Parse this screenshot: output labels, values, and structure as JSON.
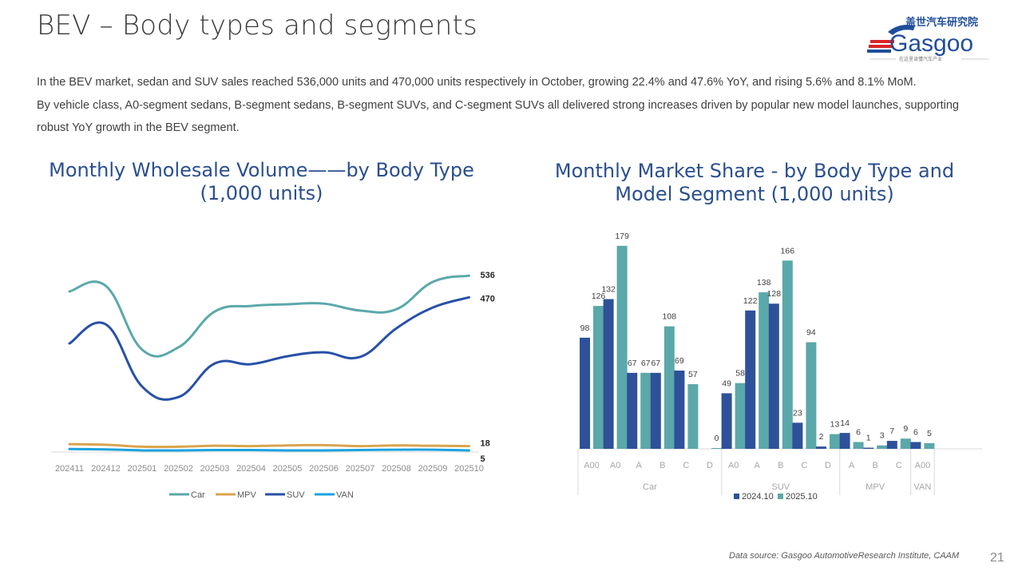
{
  "page": {
    "title": "BEV – Body types and segments",
    "number": "21",
    "source": "Data source: Gasgoo AutomotiveResearch Institute, CAAM",
    "intro": [
      "In the BEV market, sedan and SUV sales reached 536,000 units and 470,000 units respectively in October, growing 22.4% and 47.6% YoY, and rising 5.6% and 8.1% MoM.",
      "By vehicle class, A0-segment sedans, B-segment sedans, B-segment SUVs, and C-segment SUVs all delivered strong increases driven by popular new model launches, supporting robust YoY growth in the BEV segment."
    ]
  },
  "logo": {
    "brand": "Gasgoo",
    "cn_name": "盖世汽车研究院",
    "tagline": "在这里读懂汽车产业",
    "colors": {
      "blue": "#1f4e9a",
      "red": "#d9262b"
    }
  },
  "chart_data": [
    {
      "type": "line",
      "title": "Monthly Wholesale Volume——by Body Type (1,000 units)",
      "x": [
        "202411",
        "202412",
        "202501",
        "202502",
        "202503",
        "202504",
        "202505",
        "202506",
        "202507",
        "202508",
        "202509",
        "202510"
      ],
      "xlabel": "",
      "ylabel": "",
      "ylim": [
        0,
        540
      ],
      "grid": false,
      "legend": "bottom",
      "series": [
        {
          "name": "Car",
          "color": "#5ba8aa",
          "values": [
            488,
            505,
            311,
            318,
            427,
            444,
            449,
            451,
            430,
            434,
            517,
            536
          ],
          "end_label": "536"
        },
        {
          "name": "MPV",
          "color": "#d9a44e",
          "values": [
            24,
            22,
            16,
            16,
            19,
            18,
            20,
            21,
            18,
            20,
            19,
            18
          ],
          "end_label": "18"
        },
        {
          "name": "SUV",
          "color": "#2850a8",
          "values": [
            330,
            388,
            199,
            167,
            269,
            267,
            291,
            303,
            289,
            376,
            439,
            470
          ],
          "end_label": "470"
        },
        {
          "name": "VAN",
          "color": "#1aa3e0",
          "values": [
            9,
            8,
            5,
            5,
            6,
            6,
            5,
            5,
            6,
            7,
            7,
            5
          ],
          "end_label": "5"
        }
      ]
    },
    {
      "type": "bar",
      "title": "Monthly Market Share - by Body Type and Model Segment (1,000 units)",
      "xlabel": "",
      "ylabel": "",
      "ylim": [
        0,
        179
      ],
      "grid": false,
      "legend": "bottom",
      "groups": [
        {
          "name": "Car",
          "categories": [
            "A00",
            "A0",
            "A",
            "B",
            "C",
            "D"
          ]
        },
        {
          "name": "SUV",
          "categories": [
            "A0",
            "A",
            "B",
            "C",
            "D"
          ]
        },
        {
          "name": "MPV",
          "categories": [
            "A",
            "B",
            "C"
          ]
        },
        {
          "name": "VAN",
          "categories": [
            "A00"
          ]
        }
      ],
      "series": [
        {
          "name": "2024.10",
          "color": "#2e5199",
          "values": [
            98,
            132,
            67,
            67,
            69,
            null,
            49,
            122,
            128,
            23,
            2,
            14,
            1,
            7,
            6
          ]
        },
        {
          "name": "2025.10",
          "color": "#5ba8aa",
          "values": [
            126,
            179,
            67,
            108,
            57,
            0,
            58,
            138,
            166,
            94,
            13,
            6,
            3,
            9,
            5
          ]
        }
      ]
    }
  ]
}
